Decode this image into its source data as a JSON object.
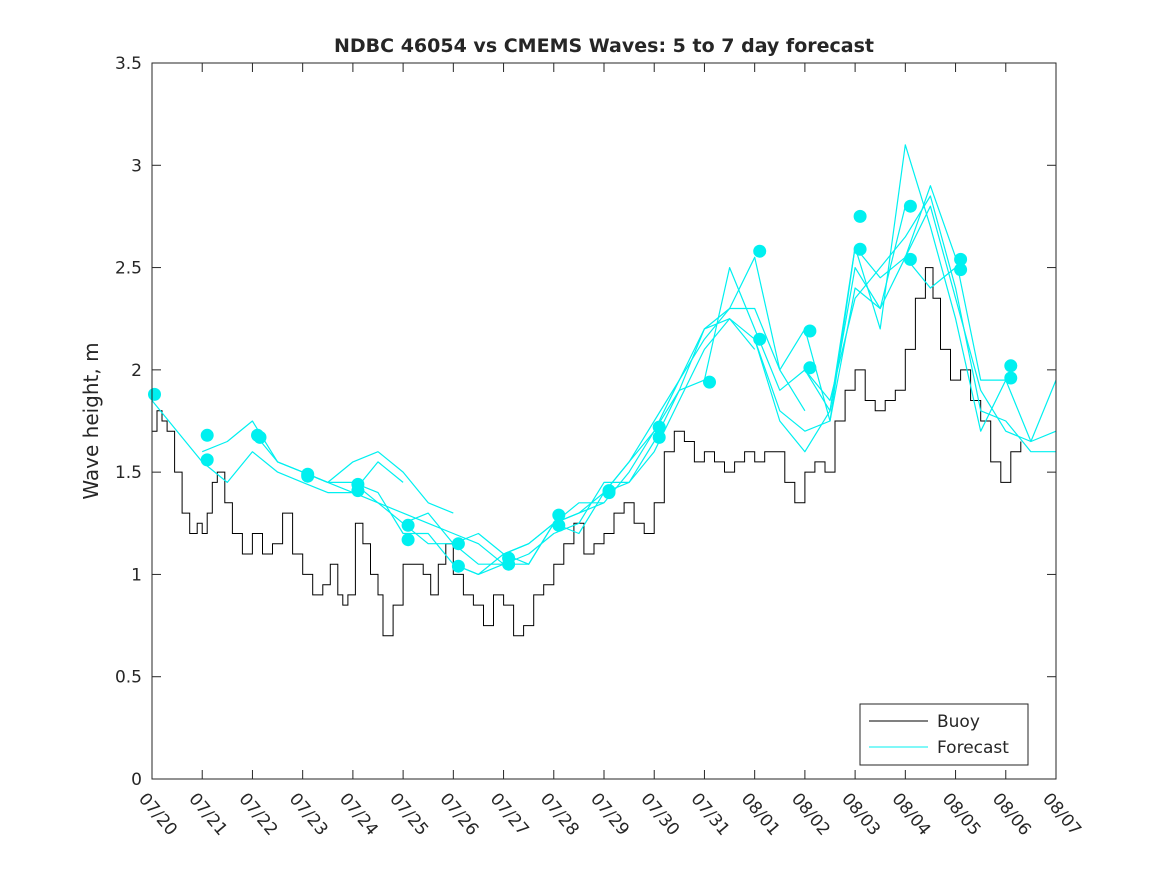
{
  "chart_data": {
    "type": "line",
    "title": "NDBC 46054 vs CMEMS Waves: 5 to 7 day forecast",
    "xlabel": "",
    "ylabel": "Wave height, m",
    "xlim": [
      0,
      18
    ],
    "ylim": [
      0,
      3.5
    ],
    "x_tick_labels": [
      "07/20",
      "07/21",
      "07/22",
      "07/23",
      "07/24",
      "07/25",
      "07/26",
      "07/27",
      "07/28",
      "07/29",
      "07/30",
      "07/31",
      "08/01",
      "08/02",
      "08/03",
      "08/04",
      "08/05",
      "08/06",
      "08/07"
    ],
    "y_ticks": [
      0,
      0.5,
      1,
      1.5,
      2,
      2.5,
      3,
      3.5
    ],
    "y_tick_labels": [
      "0",
      "0.5",
      "1",
      "1.5",
      "2",
      "2.5",
      "3",
      "3.5"
    ],
    "legend_position": "bottom-right",
    "colors": {
      "buoy": "#000000",
      "forecast": "#00f0f0"
    },
    "legend": [
      {
        "label": "Buoy",
        "color": "#000000"
      },
      {
        "label": "Forecast",
        "color": "#00f0f0"
      }
    ],
    "buoy": {
      "name": "Buoy",
      "points": [
        [
          0,
          1.7
        ],
        [
          0.1,
          1.8
        ],
        [
          0.2,
          1.75
        ],
        [
          0.3,
          1.7
        ],
        [
          0.45,
          1.5
        ],
        [
          0.6,
          1.3
        ],
        [
          0.75,
          1.2
        ],
        [
          0.9,
          1.25
        ],
        [
          1.0,
          1.2
        ],
        [
          1.1,
          1.3
        ],
        [
          1.2,
          1.45
        ],
        [
          1.3,
          1.5
        ],
        [
          1.45,
          1.35
        ],
        [
          1.6,
          1.2
        ],
        [
          1.8,
          1.1
        ],
        [
          2.0,
          1.2
        ],
        [
          2.2,
          1.1
        ],
        [
          2.4,
          1.15
        ],
        [
          2.6,
          1.3
        ],
        [
          2.8,
          1.1
        ],
        [
          3.0,
          1.0
        ],
        [
          3.2,
          0.9
        ],
        [
          3.4,
          0.95
        ],
        [
          3.55,
          1.05
        ],
        [
          3.7,
          0.9
        ],
        [
          3.8,
          0.85
        ],
        [
          3.9,
          0.9
        ],
        [
          4.05,
          1.25
        ],
        [
          4.2,
          1.15
        ],
        [
          4.35,
          1.0
        ],
        [
          4.5,
          0.9
        ],
        [
          4.6,
          0.7
        ],
        [
          4.8,
          0.85
        ],
        [
          5.0,
          1.05
        ],
        [
          5.2,
          1.05
        ],
        [
          5.4,
          1.0
        ],
        [
          5.55,
          0.9
        ],
        [
          5.7,
          1.05
        ],
        [
          5.85,
          1.15
        ],
        [
          6.0,
          1.0
        ],
        [
          6.2,
          0.9
        ],
        [
          6.4,
          0.85
        ],
        [
          6.6,
          0.75
        ],
        [
          6.8,
          0.9
        ],
        [
          7.0,
          0.85
        ],
        [
          7.2,
          0.7
        ],
        [
          7.4,
          0.75
        ],
        [
          7.6,
          0.9
        ],
        [
          7.8,
          0.95
        ],
        [
          8.0,
          1.05
        ],
        [
          8.2,
          1.15
        ],
        [
          8.4,
          1.25
        ],
        [
          8.6,
          1.1
        ],
        [
          8.8,
          1.15
        ],
        [
          9.0,
          1.2
        ],
        [
          9.2,
          1.3
        ],
        [
          9.4,
          1.35
        ],
        [
          9.6,
          1.25
        ],
        [
          9.8,
          1.2
        ],
        [
          10.0,
          1.35
        ],
        [
          10.2,
          1.6
        ],
        [
          10.4,
          1.7
        ],
        [
          10.6,
          1.65
        ],
        [
          10.8,
          1.55
        ],
        [
          11.0,
          1.6
        ],
        [
          11.2,
          1.55
        ],
        [
          11.4,
          1.5
        ],
        [
          11.6,
          1.55
        ],
        [
          11.8,
          1.6
        ],
        [
          12.0,
          1.55
        ],
        [
          12.2,
          1.6
        ],
        [
          12.4,
          1.6
        ],
        [
          12.6,
          1.45
        ],
        [
          12.8,
          1.35
        ],
        [
          13.0,
          1.5
        ],
        [
          13.2,
          1.55
        ],
        [
          13.4,
          1.5
        ],
        [
          13.6,
          1.75
        ],
        [
          13.8,
          1.9
        ],
        [
          14.0,
          2.0
        ],
        [
          14.2,
          1.85
        ],
        [
          14.4,
          1.8
        ],
        [
          14.6,
          1.85
        ],
        [
          14.8,
          1.9
        ],
        [
          15.0,
          2.1
        ],
        [
          15.2,
          2.35
        ],
        [
          15.4,
          2.5
        ],
        [
          15.55,
          2.35
        ],
        [
          15.7,
          2.1
        ],
        [
          15.9,
          1.95
        ],
        [
          16.1,
          2.0
        ],
        [
          16.3,
          1.85
        ],
        [
          16.5,
          1.75
        ],
        [
          16.7,
          1.55
        ],
        [
          16.9,
          1.45
        ],
        [
          17.1,
          1.6
        ],
        [
          17.3,
          1.65
        ]
      ]
    },
    "forecast": {
      "name": "Forecast",
      "runs": [
        [
          [
            0,
            1.85
          ],
          [
            0.5,
            1.7
          ],
          [
            1.0,
            1.55
          ],
          [
            1.5,
            1.45
          ],
          [
            2.0,
            1.6
          ],
          [
            2.5,
            1.5
          ],
          [
            3.0,
            1.45
          ],
          [
            3.5,
            1.4
          ],
          [
            4.0,
            1.4
          ],
          [
            4.5,
            1.55
          ],
          [
            5.0,
            1.45
          ]
        ],
        [
          [
            1.0,
            1.6
          ],
          [
            1.5,
            1.65
          ],
          [
            2.0,
            1.75
          ],
          [
            2.5,
            1.55
          ],
          [
            3.0,
            1.5
          ],
          [
            3.5,
            1.45
          ],
          [
            4.0,
            1.55
          ],
          [
            4.5,
            1.6
          ],
          [
            5.0,
            1.5
          ],
          [
            5.5,
            1.35
          ],
          [
            6.0,
            1.3
          ]
        ],
        [
          [
            2.0,
            1.7
          ],
          [
            2.5,
            1.55
          ],
          [
            3.0,
            1.5
          ],
          [
            3.5,
            1.45
          ],
          [
            4.0,
            1.4
          ],
          [
            4.5,
            1.35
          ],
          [
            5.0,
            1.3
          ],
          [
            5.5,
            1.25
          ],
          [
            6.0,
            1.2
          ],
          [
            6.5,
            1.15
          ],
          [
            7.0,
            1.05
          ]
        ],
        [
          [
            3.0,
            1.5
          ],
          [
            3.5,
            1.45
          ],
          [
            4.0,
            1.45
          ],
          [
            4.5,
            1.35
          ],
          [
            5.0,
            1.25
          ],
          [
            5.5,
            1.3
          ],
          [
            6.0,
            1.15
          ],
          [
            6.5,
            1.2
          ],
          [
            7.0,
            1.1
          ],
          [
            7.5,
            1.05
          ],
          [
            8.0,
            1.25
          ]
        ],
        [
          [
            4.0,
            1.45
          ],
          [
            4.5,
            1.4
          ],
          [
            5.0,
            1.2
          ],
          [
            5.5,
            1.2
          ],
          [
            6.0,
            1.05
          ],
          [
            6.5,
            1.0
          ],
          [
            7.0,
            1.05
          ],
          [
            7.5,
            1.05
          ],
          [
            8.0,
            1.25
          ],
          [
            8.5,
            1.3
          ],
          [
            9.0,
            1.35
          ]
        ],
        [
          [
            5.0,
            1.25
          ],
          [
            5.5,
            1.15
          ],
          [
            6.0,
            1.15
          ],
          [
            6.5,
            1.05
          ],
          [
            7.0,
            1.05
          ],
          [
            7.5,
            1.1
          ],
          [
            8.0,
            1.2
          ],
          [
            8.5,
            1.25
          ],
          [
            9.0,
            1.45
          ],
          [
            9.5,
            1.45
          ],
          [
            10.0,
            1.65
          ]
        ],
        [
          [
            6.0,
            1.05
          ],
          [
            6.5,
            1.0
          ],
          [
            7.0,
            1.1
          ],
          [
            7.5,
            1.15
          ],
          [
            8.0,
            1.25
          ],
          [
            8.5,
            1.35
          ],
          [
            9.0,
            1.35
          ],
          [
            9.5,
            1.5
          ],
          [
            10.0,
            1.7
          ],
          [
            10.5,
            1.9
          ],
          [
            11.0,
            1.95
          ]
        ],
        [
          [
            7.0,
            1.1
          ],
          [
            7.5,
            1.15
          ],
          [
            8.0,
            1.25
          ],
          [
            8.5,
            1.3
          ],
          [
            9.0,
            1.4
          ],
          [
            9.5,
            1.45
          ],
          [
            10.0,
            1.6
          ],
          [
            10.5,
            1.85
          ],
          [
            11.0,
            2.1
          ],
          [
            11.5,
            2.25
          ],
          [
            12.0,
            2.1
          ]
        ],
        [
          [
            8.0,
            1.25
          ],
          [
            8.5,
            1.2
          ],
          [
            9.0,
            1.4
          ],
          [
            9.5,
            1.55
          ],
          [
            10.0,
            1.7
          ],
          [
            10.5,
            1.95
          ],
          [
            11.0,
            2.15
          ],
          [
            11.5,
            2.3
          ],
          [
            12.0,
            2.55
          ],
          [
            12.5,
            2.0
          ],
          [
            13.0,
            1.8
          ]
        ],
        [
          [
            9.0,
            1.4
          ],
          [
            9.5,
            1.55
          ],
          [
            10.0,
            1.75
          ],
          [
            10.5,
            1.95
          ],
          [
            11.0,
            2.2
          ],
          [
            11.5,
            2.25
          ],
          [
            12.0,
            2.15
          ],
          [
            12.5,
            1.75
          ],
          [
            13.0,
            1.6
          ],
          [
            13.5,
            1.8
          ],
          [
            14.0,
            2.6
          ]
        ],
        [
          [
            10.0,
            1.65
          ],
          [
            10.5,
            1.9
          ],
          [
            11.0,
            2.2
          ],
          [
            11.5,
            2.3
          ],
          [
            12.0,
            2.3
          ],
          [
            12.5,
            2.0
          ],
          [
            13.0,
            2.2
          ],
          [
            13.5,
            1.75
          ],
          [
            14.0,
            2.4
          ],
          [
            14.5,
            2.3
          ],
          [
            15.0,
            2.8
          ]
        ],
        [
          [
            11.0,
            1.95
          ],
          [
            11.5,
            2.5
          ],
          [
            12.0,
            2.2
          ],
          [
            12.5,
            1.9
          ],
          [
            13.0,
            2.0
          ],
          [
            13.5,
            1.8
          ],
          [
            14.0,
            2.5
          ],
          [
            14.5,
            2.3
          ],
          [
            15.0,
            2.55
          ],
          [
            15.5,
            2.4
          ],
          [
            16.0,
            2.5
          ]
        ],
        [
          [
            12.0,
            2.15
          ],
          [
            12.5,
            1.8
          ],
          [
            13.0,
            1.7
          ],
          [
            13.5,
            1.75
          ],
          [
            14.0,
            2.6
          ],
          [
            14.5,
            2.2
          ],
          [
            15.0,
            3.1
          ],
          [
            15.5,
            2.7
          ],
          [
            16.0,
            2.25
          ],
          [
            16.5,
            1.7
          ],
          [
            17.0,
            1.95
          ]
        ],
        [
          [
            13.0,
            2.0
          ],
          [
            13.5,
            1.85
          ],
          [
            14.0,
            2.35
          ],
          [
            14.5,
            2.5
          ],
          [
            15.0,
            2.65
          ],
          [
            15.5,
            2.85
          ],
          [
            16.0,
            2.4
          ],
          [
            16.5,
            1.8
          ],
          [
            17.0,
            1.75
          ],
          [
            17.5,
            1.6
          ],
          [
            18.0,
            1.6
          ]
        ],
        [
          [
            14.0,
            2.6
          ],
          [
            14.5,
            2.45
          ],
          [
            15.0,
            2.55
          ],
          [
            15.5,
            2.8
          ],
          [
            16.0,
            2.35
          ],
          [
            16.5,
            1.9
          ],
          [
            17.0,
            1.7
          ],
          [
            17.5,
            1.65
          ],
          [
            18.0,
            1.7
          ]
        ],
        [
          [
            15.0,
            2.55
          ],
          [
            15.5,
            2.9
          ],
          [
            16.0,
            2.55
          ],
          [
            16.5,
            1.95
          ],
          [
            17.0,
            1.95
          ],
          [
            17.5,
            1.65
          ],
          [
            18.0,
            1.95
          ]
        ]
      ],
      "markers": [
        [
          0.05,
          1.88
        ],
        [
          1.1,
          1.68
        ],
        [
          1.1,
          1.56
        ],
        [
          2.1,
          1.68
        ],
        [
          2.15,
          1.67
        ],
        [
          3.1,
          1.49
        ],
        [
          3.1,
          1.48
        ],
        [
          4.1,
          1.44
        ],
        [
          4.1,
          1.41
        ],
        [
          5.1,
          1.24
        ],
        [
          5.1,
          1.17
        ],
        [
          6.1,
          1.15
        ],
        [
          6.1,
          1.04
        ],
        [
          7.1,
          1.08
        ],
        [
          7.1,
          1.05
        ],
        [
          8.1,
          1.29
        ],
        [
          8.1,
          1.24
        ],
        [
          9.1,
          1.41
        ],
        [
          9.1,
          1.4
        ],
        [
          10.1,
          1.72
        ],
        [
          10.1,
          1.67
        ],
        [
          11.1,
          1.94
        ],
        [
          12.1,
          2.58
        ],
        [
          12.1,
          2.15
        ],
        [
          13.1,
          2.19
        ],
        [
          13.1,
          2.01
        ],
        [
          14.1,
          2.75
        ],
        [
          14.1,
          2.59
        ],
        [
          15.1,
          2.8
        ],
        [
          15.1,
          2.54
        ],
        [
          16.1,
          2.54
        ],
        [
          16.1,
          2.49
        ],
        [
          17.1,
          2.02
        ],
        [
          17.1,
          1.96
        ]
      ]
    }
  }
}
